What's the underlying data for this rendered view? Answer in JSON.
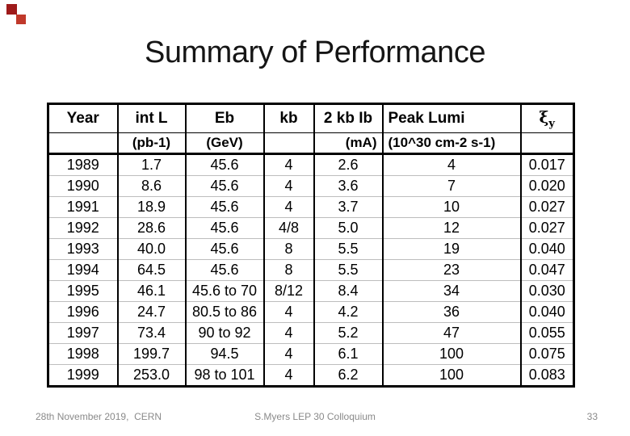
{
  "slide": {
    "title": "Summary of Performance",
    "decoration": {
      "square1_color": "#9e1a1a",
      "square2_color": "#c0392b"
    }
  },
  "table": {
    "columns": [
      {
        "label": "Year",
        "unit": ""
      },
      {
        "label": "int L",
        "unit": "(pb-1)"
      },
      {
        "label": "Eb",
        "unit": "(GeV)"
      },
      {
        "label": "kb",
        "unit": ""
      },
      {
        "label": "2 kb Ib",
        "unit": "(mA)"
      },
      {
        "label": "Peak Lumi",
        "unit": "(10^30 cm-2 s-1)"
      },
      {
        "label": "ξ",
        "label_sub": "y",
        "unit": ""
      }
    ],
    "rows": [
      [
        "1989",
        "1.7",
        "45.6",
        "4",
        "2.6",
        "4",
        "0.017"
      ],
      [
        "1990",
        "8.6",
        "45.6",
        "4",
        "3.6",
        "7",
        "0.020"
      ],
      [
        "1991",
        "18.9",
        "45.6",
        "4",
        "3.7",
        "10",
        "0.027"
      ],
      [
        "1992",
        "28.6",
        "45.6",
        "4/8",
        "5.0",
        "12",
        "0.027"
      ],
      [
        "1993",
        "40.0",
        "45.6",
        "8",
        "5.5",
        "19",
        "0.040"
      ],
      [
        "1994",
        "64.5",
        "45.6",
        "8",
        "5.5",
        "23",
        "0.047"
      ],
      [
        "1995",
        "46.1",
        "45.6 to 70",
        "8/12",
        "8.4",
        "34",
        "0.030"
      ],
      [
        "1996",
        "24.7",
        "80.5 to 86",
        "4",
        "4.2",
        "36",
        "0.040"
      ],
      [
        "1997",
        "73.4",
        "90 to 92",
        "4",
        "5.2",
        "47",
        "0.055"
      ],
      [
        "1998",
        "199.7",
        "94.5",
        "4",
        "6.1",
        "100",
        "0.075"
      ],
      [
        "1999",
        "253.0",
        "98 to 101",
        "4",
        "6.2",
        "100",
        "0.083"
      ]
    ]
  },
  "footer": {
    "left": "28th November 2019,  CERN",
    "center": "S.Myers LEP 30 Colloquium",
    "page_number": "33"
  }
}
